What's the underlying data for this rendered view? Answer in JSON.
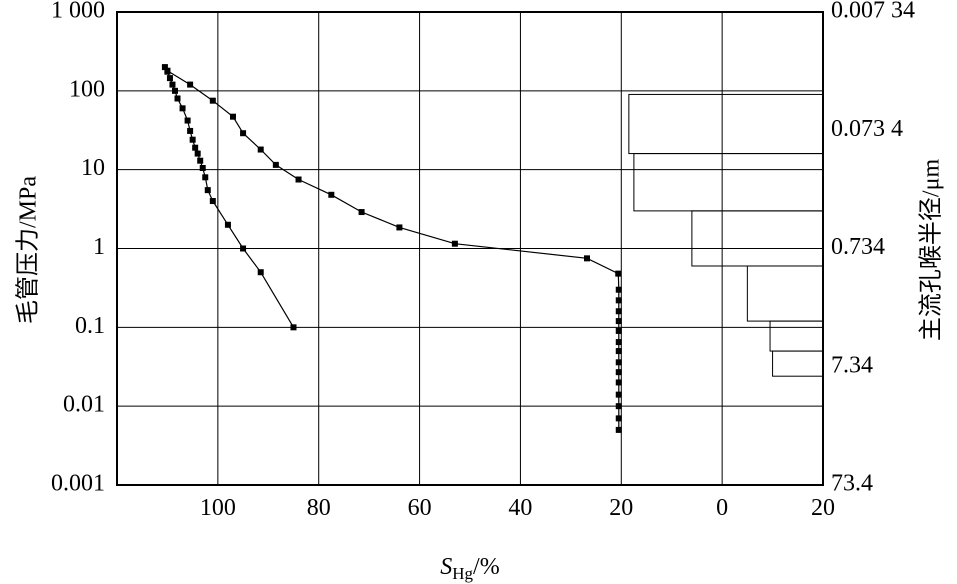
{
  "chart_data": {
    "type": "line",
    "xlabel_main": "S",
    "xlabel_sub": "Hg",
    "xlabel_unit": "/%",
    "ylabel": "毛管压力/MPa",
    "y2label": "主流孔喉半径/μm",
    "x_axis": {
      "reversed": true,
      "xlim": [
        120,
        0
      ],
      "ticks": [
        "100",
        "80",
        "60",
        "40",
        "20",
        "0"
      ],
      "tick_values": [
        100,
        80,
        60,
        40,
        20,
        0
      ]
    },
    "y_axis": {
      "scale": "log",
      "ylim": [
        0.001,
        1000
      ],
      "ticks": [
        "1 000",
        "100",
        "10",
        "1",
        "0.1",
        "0.01",
        "0.001"
      ],
      "tick_values": [
        1000,
        100,
        10,
        1,
        0.1,
        0.01,
        0.001
      ]
    },
    "y2_axis": {
      "scale": "log",
      "ticks": [
        "0.007 34",
        "0.073 4",
        "0.734",
        "7.34",
        "73.4"
      ],
      "tick_values": [
        0.00734,
        0.0734,
        0.734,
        7.34,
        73.4
      ]
    },
    "hist_axis": {
      "ticks": [
        "20"
      ],
      "tick_values": [
        20
      ],
      "range": [
        0,
        20
      ]
    },
    "grid": true,
    "series": [
      {
        "marker": "square",
        "points": [
          [
            20.5,
            0.005
          ],
          [
            20.5,
            0.007
          ],
          [
            20.5,
            0.01
          ],
          [
            20.5,
            0.014
          ],
          [
            20.5,
            0.02
          ],
          [
            20.5,
            0.027
          ],
          [
            20.5,
            0.036
          ],
          [
            20.5,
            0.05
          ],
          [
            20.5,
            0.065
          ],
          [
            20.5,
            0.09
          ],
          [
            20.5,
            0.12
          ],
          [
            20.5,
            0.16
          ],
          [
            20.5,
            0.22
          ],
          [
            20.5,
            0.3
          ],
          [
            20.6,
            0.48
          ],
          [
            26.8,
            0.75
          ],
          [
            53,
            1.15
          ],
          [
            64,
            1.85
          ],
          [
            71.5,
            2.9
          ],
          [
            77.5,
            4.8
          ],
          [
            84,
            7.5
          ],
          [
            88.5,
            11.5
          ],
          [
            91.5,
            18
          ],
          [
            95,
            29
          ],
          [
            97,
            47
          ],
          [
            101,
            75
          ],
          [
            105.5,
            120
          ],
          [
            110,
            180
          ]
        ]
      },
      {
        "marker": "square",
        "points": [
          [
            85,
            0.1
          ],
          [
            91.5,
            0.5
          ],
          [
            95,
            1.0
          ],
          [
            98,
            2.0
          ],
          [
            101,
            4.0
          ],
          [
            102,
            5.5
          ],
          [
            102.5,
            8
          ],
          [
            103,
            10.5
          ],
          [
            103.5,
            13
          ],
          [
            104,
            16
          ],
          [
            104.5,
            19
          ],
          [
            105,
            24
          ],
          [
            105.5,
            31
          ],
          [
            106,
            42
          ],
          [
            107,
            60
          ],
          [
            108,
            80
          ],
          [
            108.5,
            100
          ],
          [
            109,
            120
          ],
          [
            109.5,
            145
          ],
          [
            110,
            175
          ],
          [
            110.5,
            200
          ]
        ]
      }
    ],
    "histogram": [
      {
        "from": 0.024,
        "to": 0.05,
        "value": 10
      },
      {
        "from": 0.05,
        "to": 0.12,
        "value": 10.5
      },
      {
        "from": 0.12,
        "to": 0.6,
        "value": 15
      },
      {
        "from": 0.6,
        "to": 3.0,
        "value": 26
      },
      {
        "from": 3.0,
        "to": 16,
        "value": 37.5
      },
      {
        "from": 16,
        "to": 90,
        "value": 38.5
      }
    ]
  }
}
